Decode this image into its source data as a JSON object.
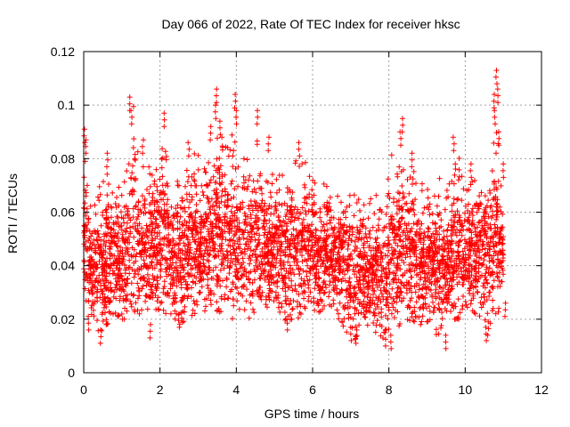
{
  "chart_data": {
    "type": "scatter",
    "title": "Day 066 of 2022, Rate Of TEC Index for receiver hksc",
    "xlabel": "GPS time / hours",
    "ylabel": "ROTI / TECUs",
    "xlim": [
      0,
      12
    ],
    "ylim": [
      0,
      0.12
    ],
    "x_ticks": [
      0,
      2,
      4,
      6,
      8,
      10,
      12
    ],
    "x_tick_labels": [
      "0",
      "2",
      "4",
      "6",
      "8",
      "10",
      "12"
    ],
    "y_ticks": [
      0,
      0.02,
      0.04,
      0.06,
      0.08,
      0.1,
      0.12
    ],
    "y_tick_labels": [
      "0",
      "0.02",
      "0.04",
      "0.06",
      "0.08",
      "0.1",
      "0.12"
    ],
    "grid": true,
    "marker": "plus",
    "series": [
      {
        "color": "#ff0000",
        "envelope": {
          "x": [
            0.0,
            0.1,
            0.2,
            0.4,
            0.6,
            0.8,
            1.0,
            1.2,
            1.3,
            1.5,
            1.7,
            1.9,
            2.1,
            2.3,
            2.5,
            2.7,
            2.9,
            3.1,
            3.3,
            3.5,
            3.7,
            3.9,
            4.1,
            4.3,
            4.5,
            4.7,
            4.9,
            5.1,
            5.3,
            5.5,
            5.7,
            5.9,
            6.1,
            6.3,
            6.5,
            6.7,
            6.9,
            7.1,
            7.3,
            7.5,
            7.7,
            7.9,
            8.1,
            8.3,
            8.5,
            8.7,
            8.9,
            9.1,
            9.3,
            9.5,
            9.7,
            9.9,
            10.1,
            10.3,
            10.5,
            10.7,
            10.8,
            10.9,
            11.0
          ],
          "low": [
            0.03,
            0.025,
            0.022,
            0.015,
            0.017,
            0.022,
            0.02,
            0.02,
            0.022,
            0.022,
            0.024,
            0.023,
            0.022,
            0.022,
            0.018,
            0.02,
            0.022,
            0.022,
            0.025,
            0.023,
            0.022,
            0.02,
            0.022,
            0.02,
            0.022,
            0.024,
            0.023,
            0.02,
            0.018,
            0.018,
            0.022,
            0.023,
            0.022,
            0.024,
            0.022,
            0.02,
            0.015,
            0.012,
            0.018,
            0.015,
            0.015,
            0.012,
            0.015,
            0.018,
            0.02,
            0.018,
            0.018,
            0.02,
            0.012,
            0.018,
            0.02,
            0.02,
            0.022,
            0.022,
            0.02,
            0.017,
            0.02,
            0.023,
            0.025
          ],
          "high": [
            0.085,
            0.075,
            0.06,
            0.07,
            0.075,
            0.068,
            0.072,
            0.09,
            0.1,
            0.085,
            0.082,
            0.078,
            0.09,
            0.075,
            0.072,
            0.078,
            0.085,
            0.078,
            0.085,
            0.1,
            0.095,
            0.092,
            0.08,
            0.085,
            0.09,
            0.08,
            0.075,
            0.082,
            0.075,
            0.08,
            0.078,
            0.082,
            0.07,
            0.075,
            0.072,
            0.07,
            0.068,
            0.07,
            0.068,
            0.065,
            0.07,
            0.068,
            0.085,
            0.088,
            0.08,
            0.075,
            0.07,
            0.072,
            0.075,
            0.068,
            0.08,
            0.082,
            0.07,
            0.075,
            0.08,
            0.078,
            0.1,
            0.08,
            0.068
          ]
        },
        "peaks": [
          [
            0.02,
            0.091
          ],
          [
            0.05,
            0.087
          ],
          [
            0.62,
            0.082
          ],
          [
            1.22,
            0.103
          ],
          [
            1.25,
            0.098
          ],
          [
            1.55,
            0.087
          ],
          [
            2.12,
            0.097
          ],
          [
            2.75,
            0.086
          ],
          [
            3.32,
            0.092
          ],
          [
            3.48,
            0.106
          ],
          [
            3.45,
            0.1
          ],
          [
            3.58,
            0.094
          ],
          [
            3.97,
            0.104
          ],
          [
            4.0,
            0.098
          ],
          [
            4.55,
            0.098
          ],
          [
            4.85,
            0.088
          ],
          [
            5.65,
            0.086
          ],
          [
            8.35,
            0.095
          ],
          [
            8.3,
            0.09
          ],
          [
            8.6,
            0.082
          ],
          [
            9.7,
            0.088
          ],
          [
            10.15,
            0.078
          ],
          [
            10.75,
            0.104
          ],
          [
            10.78,
            0.098
          ],
          [
            10.82,
            0.113
          ],
          [
            10.85,
            0.106
          ],
          [
            10.88,
            0.09
          ],
          [
            11.0,
            0.078
          ]
        ],
        "troughs": [
          [
            0.45,
            0.011
          ],
          [
            0.12,
            0.016
          ],
          [
            1.75,
            0.013
          ],
          [
            2.5,
            0.017
          ],
          [
            5.35,
            0.016
          ],
          [
            7.0,
            0.012
          ],
          [
            7.15,
            0.011
          ],
          [
            7.9,
            0.01
          ],
          [
            8.05,
            0.009
          ],
          [
            9.5,
            0.009
          ],
          [
            10.55,
            0.012
          ],
          [
            10.6,
            0.014
          ],
          [
            11.05,
            0.021
          ]
        ]
      }
    ]
  }
}
